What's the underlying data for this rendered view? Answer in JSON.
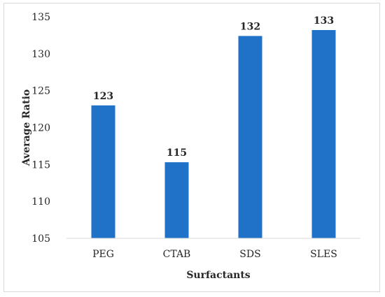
{
  "chart_data": {
    "type": "bar",
    "title": "",
    "xlabel": "Surfactants",
    "ylabel": "Average Ratio",
    "categories": [
      "PEG",
      "CTAB",
      "SDS",
      "SLES"
    ],
    "values": [
      123,
      115.3,
      132.4,
      133.2
    ],
    "data_labels": [
      "123",
      "115",
      "132",
      "133"
    ],
    "ylim": [
      105,
      135
    ],
    "yticks": [
      105,
      110,
      115,
      120,
      125,
      130,
      135
    ],
    "grid": false,
    "legend": "none",
    "bar_color": "#1f72c8"
  }
}
